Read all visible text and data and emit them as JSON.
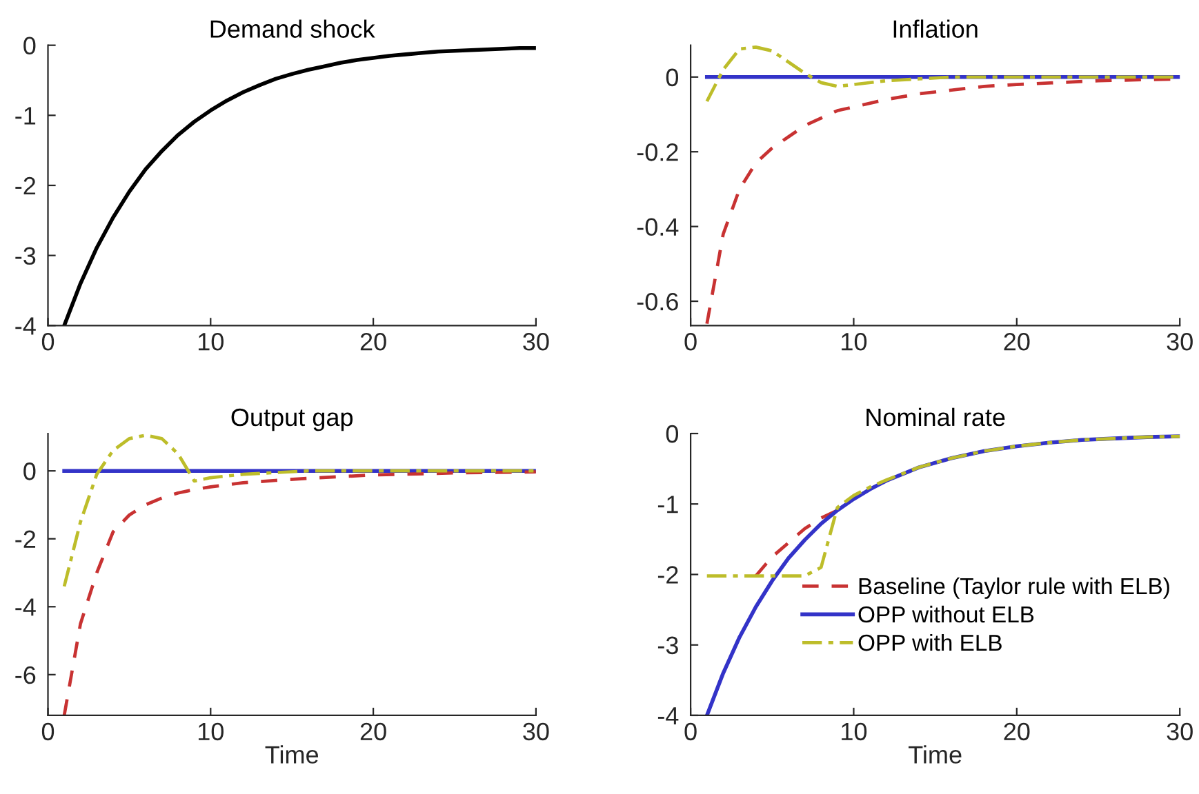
{
  "chart_data": [
    {
      "type": "line",
      "title": "Demand shock",
      "xlim": [
        0,
        30
      ],
      "xticks": [
        0,
        10,
        20,
        30
      ],
      "ylim": [
        -4,
        0
      ],
      "yticks": [
        -4,
        -3,
        -2,
        -1,
        0
      ],
      "grid": false,
      "legend": false,
      "marker": "none",
      "series": [
        {
          "color": "#000000",
          "line_style": "solid",
          "x": [
            1,
            2,
            3,
            4,
            5,
            6,
            7,
            8,
            9,
            10,
            11,
            12,
            13,
            14,
            15,
            16,
            17,
            18,
            19,
            20,
            21,
            22,
            23,
            24,
            25,
            26,
            27,
            28,
            29,
            30
          ],
          "values": [
            -4,
            -3.4,
            -2.89,
            -2.46,
            -2.09,
            -1.77,
            -1.51,
            -1.28,
            -1.09,
            -0.93,
            -0.79,
            -0.67,
            -0.57,
            -0.48,
            -0.41,
            -0.35,
            -0.3,
            -0.25,
            -0.21,
            -0.18,
            -0.15,
            -0.13,
            -0.11,
            -0.09,
            -0.08,
            -0.07,
            -0.06,
            -0.05,
            -0.04,
            -0.04
          ]
        }
      ]
    },
    {
      "type": "line",
      "title": "Inflation",
      "xlim": [
        0,
        30
      ],
      "xticks": [
        0,
        10,
        20,
        30
      ],
      "ylim": [
        -0.665,
        0.085
      ],
      "yticks": [
        -0.6,
        -0.4,
        -0.2,
        0
      ],
      "grid": false,
      "legend": false,
      "marker": "none",
      "series": [
        {
          "color": "#3333c8",
          "line_style": "solid",
          "x": [
            1,
            30
          ],
          "values": [
            0,
            0
          ]
        },
        {
          "color": "#c83232",
          "line_style": "dashed",
          "x": [
            1,
            2,
            3,
            4,
            5,
            6,
            7,
            8,
            9,
            10,
            12,
            14,
            16,
            18,
            20,
            25,
            30
          ],
          "values": [
            -0.66,
            -0.42,
            -0.3,
            -0.23,
            -0.19,
            -0.16,
            -0.13,
            -0.11,
            -0.09,
            -0.08,
            -0.06,
            -0.045,
            -0.035,
            -0.025,
            -0.02,
            -0.01,
            -0.005
          ]
        },
        {
          "color": "#bdbd2a",
          "line_style": "dashdot",
          "x": [
            1,
            2,
            3,
            4,
            5,
            6,
            7,
            8,
            9,
            10,
            12,
            14,
            16,
            30
          ],
          "values": [
            -0.065,
            0.02,
            0.075,
            0.08,
            0.07,
            0.04,
            0.01,
            -0.015,
            -0.025,
            -0.02,
            -0.01,
            -0.005,
            0,
            0
          ]
        }
      ]
    },
    {
      "type": "line",
      "title": "Output gap",
      "xlabel": "Time",
      "xlim": [
        0,
        30
      ],
      "xticks": [
        0,
        10,
        20,
        30
      ],
      "ylim": [
        -7.2,
        1.1
      ],
      "yticks": [
        -6,
        -4,
        -2,
        0
      ],
      "grid": false,
      "legend": false,
      "marker": "none",
      "series": [
        {
          "color": "#3333c8",
          "line_style": "solid",
          "x": [
            1,
            30
          ],
          "values": [
            0,
            0
          ]
        },
        {
          "color": "#c83232",
          "line_style": "dashed",
          "x": [
            1,
            2,
            3,
            4,
            5,
            6,
            7,
            8,
            9,
            10,
            12,
            14,
            16,
            18,
            20,
            25,
            30
          ],
          "values": [
            -7.2,
            -4.5,
            -3.0,
            -1.8,
            -1.3,
            -1.0,
            -0.8,
            -0.65,
            -0.55,
            -0.47,
            -0.35,
            -0.28,
            -0.22,
            -0.17,
            -0.12,
            -0.06,
            -0.03
          ]
        },
        {
          "color": "#bdbd2a",
          "line_style": "dashdot",
          "x": [
            1,
            2,
            3,
            4,
            5,
            6,
            7,
            8,
            9,
            10,
            12,
            14,
            16,
            30
          ],
          "values": [
            -3.4,
            -1.5,
            -0.1,
            0.6,
            0.95,
            1.05,
            0.95,
            0.5,
            -0.3,
            -0.2,
            -0.1,
            -0.05,
            0,
            0
          ]
        }
      ]
    },
    {
      "type": "line",
      "title": "Nominal rate",
      "xlabel": "Time",
      "xlim": [
        0,
        30
      ],
      "xticks": [
        0,
        10,
        20,
        30
      ],
      "ylim": [
        -4,
        0
      ],
      "yticks": [
        -4,
        -3,
        -2,
        -1,
        0
      ],
      "grid": false,
      "legend": "bottom right",
      "marker": "none",
      "series": [
        {
          "name": "Baseline (Taylor rule with ELB)",
          "color": "#c83232",
          "line_style": "dashed",
          "x": [
            4,
            5,
            6,
            7,
            8,
            9
          ],
          "values": [
            -2.02,
            -1.75,
            -1.55,
            -1.35,
            -1.2,
            -1.09
          ]
        },
        {
          "name": "OPP without ELB",
          "color": "#3333c8",
          "line_style": "solid",
          "x": [
            1,
            2,
            3,
            4,
            5,
            6,
            7,
            8,
            9,
            10,
            11,
            12,
            14,
            16,
            18,
            20,
            22,
            24,
            26,
            28,
            30
          ],
          "values": [
            -4,
            -3.4,
            -2.89,
            -2.46,
            -2.09,
            -1.77,
            -1.51,
            -1.28,
            -1.09,
            -0.93,
            -0.79,
            -0.67,
            -0.48,
            -0.35,
            -0.25,
            -0.18,
            -0.13,
            -0.09,
            -0.07,
            -0.05,
            -0.04
          ]
        },
        {
          "name": "OPP with ELB",
          "color": "#bdbd2a",
          "line_style": "dashdot",
          "x": [
            1,
            2,
            3,
            4,
            5,
            6,
            7,
            8,
            9,
            10,
            11,
            12,
            14,
            16,
            18,
            20,
            22,
            24,
            26,
            28,
            30
          ],
          "values": [
            -2.02,
            -2.02,
            -2.02,
            -2.02,
            -2.02,
            -2.02,
            -2.02,
            -1.9,
            -1.05,
            -0.88,
            -0.76,
            -0.66,
            -0.48,
            -0.35,
            -0.25,
            -0.18,
            -0.13,
            -0.09,
            -0.07,
            -0.05,
            -0.04
          ]
        }
      ]
    }
  ]
}
